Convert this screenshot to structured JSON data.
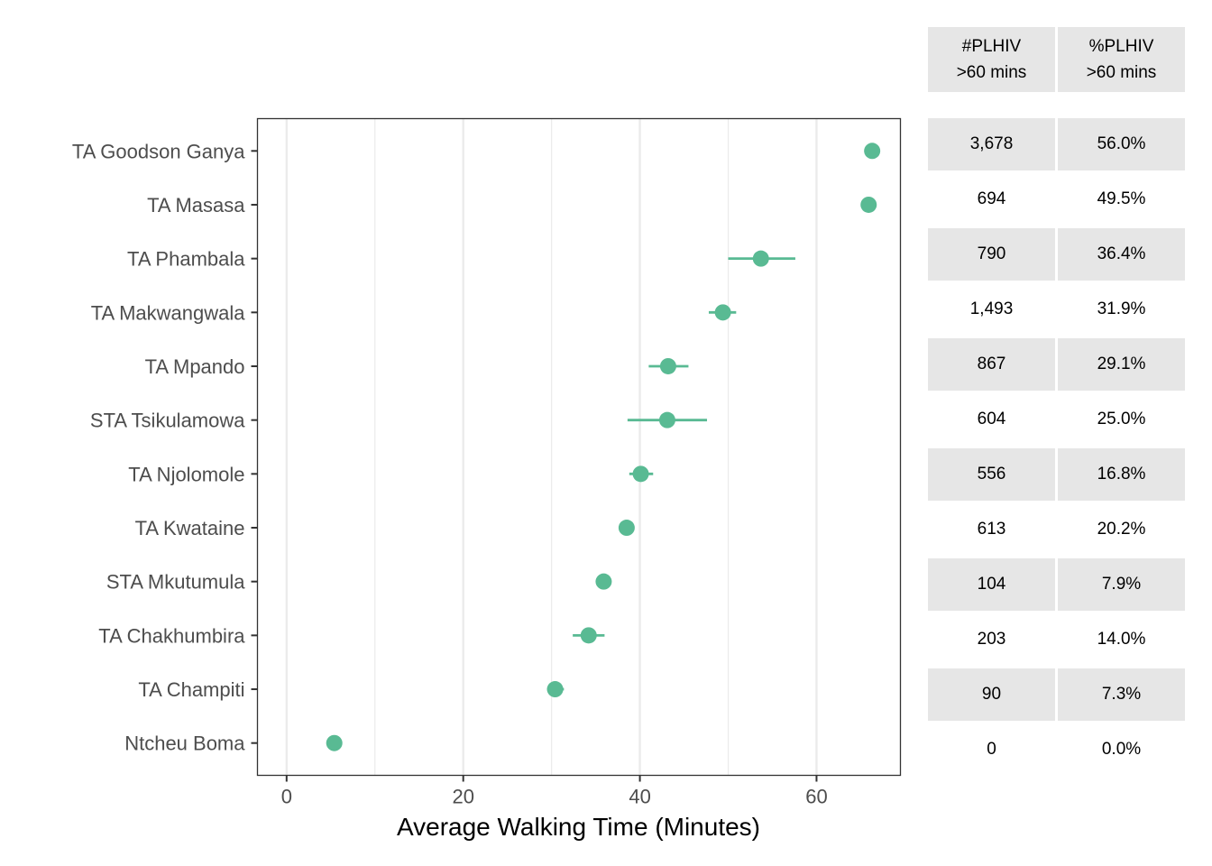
{
  "chart_data": {
    "type": "scatter",
    "xlabel": "Average Walking Time (Minutes)",
    "xlim": [
      -3.3,
      69.5
    ],
    "xticks": [
      0,
      20,
      40,
      60
    ],
    "grid": true,
    "point_color": "#59BA93",
    "categories": [
      "TA Goodson Ganya",
      "TA Masasa",
      "TA Phambala",
      "TA Makwangwala",
      "TA Mpando",
      "STA Tsikulamowa",
      "TA Njolomole",
      "TA Kwataine",
      "STA Mkutumula",
      "TA Chakhumbira",
      "TA Champiti",
      "Ntcheu Boma"
    ],
    "points": [
      {
        "x": 66.3,
        "low": 66.3,
        "high": 66.3
      },
      {
        "x": 65.9,
        "low": 65.9,
        "high": 65.9
      },
      {
        "x": 53.7,
        "low": 50.0,
        "high": 57.6
      },
      {
        "x": 49.4,
        "low": 47.8,
        "high": 50.9
      },
      {
        "x": 43.2,
        "low": 41.0,
        "high": 45.5
      },
      {
        "x": 43.1,
        "low": 38.6,
        "high": 47.6
      },
      {
        "x": 40.1,
        "low": 38.8,
        "high": 41.5
      },
      {
        "x": 38.5,
        "low": 37.8,
        "high": 39.2
      },
      {
        "x": 35.9,
        "low": 35.4,
        "high": 36.3
      },
      {
        "x": 34.2,
        "low": 32.4,
        "high": 36.0
      },
      {
        "x": 30.4,
        "low": 29.5,
        "high": 31.4
      },
      {
        "x": 5.4,
        "low": 5.4,
        "high": 5.4
      }
    ]
  },
  "table": {
    "headers": [
      {
        "line1": "#PLHIV",
        "line2": ">60 mins"
      },
      {
        "line1": "%PLHIV",
        "line2": ">60 mins"
      }
    ],
    "rows": [
      {
        "count": "3,678",
        "pct": "56.0%"
      },
      {
        "count": "694",
        "pct": "49.5%"
      },
      {
        "count": "790",
        "pct": "36.4%"
      },
      {
        "count": "1,493",
        "pct": "31.9%"
      },
      {
        "count": "867",
        "pct": "29.1%"
      },
      {
        "count": "604",
        "pct": "25.0%"
      },
      {
        "count": "556",
        "pct": "16.8%"
      },
      {
        "count": "613",
        "pct": "20.2%"
      },
      {
        "count": "104",
        "pct": "7.9%"
      },
      {
        "count": "203",
        "pct": "14.0%"
      },
      {
        "count": "90",
        "pct": "7.3%"
      },
      {
        "count": "0",
        "pct": "0.0%"
      }
    ]
  }
}
